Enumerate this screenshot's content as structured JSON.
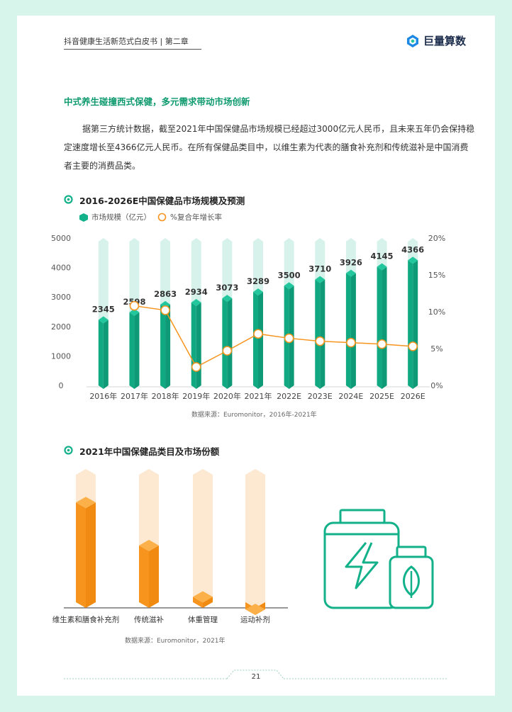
{
  "header": {
    "title": "抖音健康生活新范式白皮书 | 第二章",
    "brand": "巨量算数"
  },
  "section": {
    "heading": "中式养生碰撞西式保健，多元需求带动市场创新",
    "paragraph": "据第三方统计数据，截至2021年中国保健品市场规模已经超过3000亿元人民币，且未来五年仍会保持稳定速度增长至4366亿元人民币。在所有保健品类目中，以维生素为代表的膳食补充剂和传统滋补是中国消费者主要的消费品类。"
  },
  "chart1": {
    "heading": "2016-2026E中国保健品市场规模及预测",
    "source": "数据来源：Euromonitor，2016年-2021年"
  },
  "chart2": {
    "heading": "2021年中国保健品类目及市场份额",
    "source": "数据来源：Euromonitor，2021年"
  },
  "footer": {
    "page_number": "21"
  },
  "colors": {
    "green": "#13b18a",
    "green_light": "#d6f2ea",
    "orange": "#f7941d",
    "orange_light": "#fde9d2",
    "accent_text": "#0e9a6e"
  },
  "chart_data": [
    {
      "type": "bar",
      "title": "2016-2026E中国保健品市场规模及预测",
      "categories": [
        "2016年",
        "2017年",
        "2018年",
        "2019年",
        "2020年",
        "2021年",
        "2022E",
        "2023E",
        "2024E",
        "2025E",
        "2026E"
      ],
      "series": [
        {
          "name": "市场规模（亿元）",
          "type": "bar",
          "values": [
            2345,
            2598,
            2863,
            2934,
            3073,
            3289,
            3500,
            3710,
            3926,
            4145,
            4366
          ]
        },
        {
          "name": "%复合年增长率",
          "type": "line",
          "axis": "right",
          "values": [
            null,
            10.8,
            10.2,
            2.5,
            4.7,
            7.0,
            6.4,
            6.0,
            5.8,
            5.6,
            5.3
          ]
        }
      ],
      "ylim": [
        0,
        5000
      ],
      "yticks": [
        "0",
        "1000",
        "2000",
        "3000",
        "4000",
        "5000"
      ],
      "y2lim": [
        0,
        20
      ],
      "y2ticks": [
        "0%",
        "5%",
        "10%",
        "15%",
        "20%"
      ],
      "legend": "top-left",
      "grid": false
    },
    {
      "type": "bar",
      "title": "2021年中国保健品类目及市场份额",
      "categories": [
        "维生素和膳食补充剂",
        "传统滋补",
        "体重管理",
        "运动补剂"
      ],
      "values": [
        0.8,
        0.49,
        0.12,
        0.03
      ],
      "ylim": [
        0,
        1
      ]
    }
  ]
}
